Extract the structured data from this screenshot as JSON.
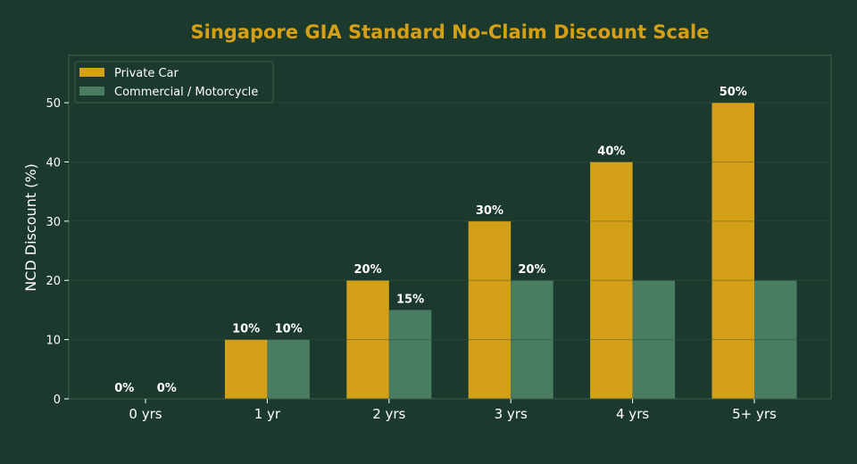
{
  "chart_data": {
    "type": "bar",
    "title": "Singapore GIA Standard No-Claim Discount Scale",
    "xlabel": "",
    "ylabel": "NCD Discount (%)",
    "categories": [
      "0 yrs",
      "1 yr",
      "2 yrs",
      "3 yrs",
      "4 yrs",
      "5+ yrs"
    ],
    "series": [
      {
        "name": "Private Car",
        "values": [
          0,
          10,
          20,
          30,
          40,
          50
        ],
        "color": "#d4a017",
        "labels": [
          "0%",
          "10%",
          "20%",
          "30%",
          "40%",
          "50%"
        ]
      },
      {
        "name": "Commercial / Motorcycle",
        "values": [
          0,
          10,
          15,
          20,
          20,
          20
        ],
        "color": "#4a7c62",
        "labels": [
          "0%",
          "10%",
          "15%",
          "20%",
          "",
          ""
        ]
      }
    ],
    "ylim": [
      0,
      58
    ],
    "yticks": [
      0,
      10,
      20,
      30,
      40,
      50
    ],
    "grid": true,
    "legend": "top-left",
    "colors": {
      "background": "#1b3a2d",
      "title": "#d4a017",
      "text": "#ffffff",
      "axes_border": "#3e5e4e",
      "grid": "#2a4d3c"
    }
  }
}
